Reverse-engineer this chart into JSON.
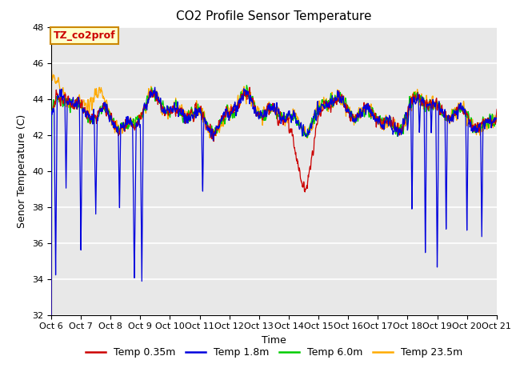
{
  "title": "CO2 Profile Sensor Temperature",
  "xlabel": "Time",
  "ylabel": "Senor Temperature (C)",
  "ylim": [
    32,
    48
  ],
  "yticks": [
    32,
    34,
    36,
    38,
    40,
    42,
    44,
    46,
    48
  ],
  "xtick_labels": [
    "Oct 6",
    "Oct 7",
    "Oct 8",
    "Oct 9",
    "Oct 10",
    "Oct 11",
    "Oct 12",
    "Oct 13",
    "Oct 14",
    "Oct 15",
    "Oct 16",
    "Oct 17",
    "Oct 18",
    "Oct 19",
    "Oct 20",
    "Oct 21"
  ],
  "series_colors": [
    "#cc0000",
    "#0000dd",
    "#00cc00",
    "#ffaa00"
  ],
  "series_labels": [
    "Temp 0.35m",
    "Temp 1.8m",
    "Temp 6.0m",
    "Temp 23.5m"
  ],
  "annotation_text": "TZ_co2prof",
  "annotation_color": "#cc0000",
  "annotation_bg": "#ffffcc",
  "annotation_border": "#cc8800",
  "plot_bg": "#e8e8e8",
  "grid_color": "#ffffff",
  "title_fontsize": 11,
  "axis_label_fontsize": 9,
  "tick_fontsize": 8,
  "legend_fontsize": 9,
  "linewidth": 0.9
}
